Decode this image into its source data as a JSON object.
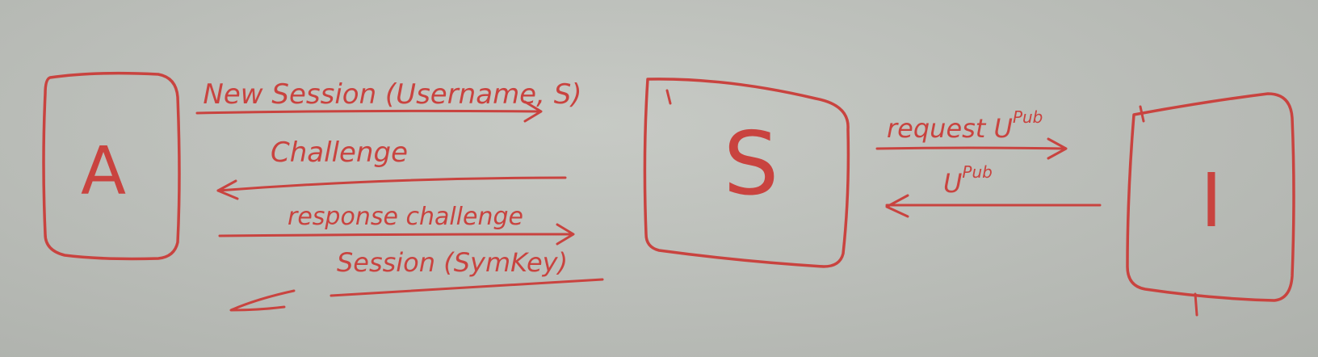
{
  "colors": {
    "ink": "#c9433f",
    "board": "#bcbfba"
  },
  "nodes": {
    "a": {
      "label": "A"
    },
    "s": {
      "label": "S"
    },
    "i": {
      "label": "I"
    }
  },
  "messages": {
    "new_session": "New Session (Username, S)",
    "challenge": "Challenge",
    "response_challenge": "response challenge",
    "session_symkey": "Session (SymKey)",
    "request_upub": "request U",
    "request_upub_sup": "Pub",
    "upub": "U",
    "upub_sup": "Pub"
  }
}
